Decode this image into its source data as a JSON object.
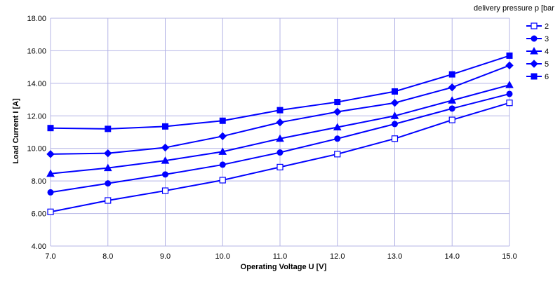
{
  "chart_data": {
    "type": "line",
    "title": "",
    "xlabel": "Operating Voltage U [V]",
    "ylabel": "Load Current I [A]",
    "legend_title": "delivery pressure p [bar",
    "legend_position": "right",
    "grid": true,
    "x": [
      7.0,
      8.0,
      9.0,
      10.0,
      11.0,
      12.0,
      13.0,
      14.0,
      15.0
    ],
    "x_tick_labels": [
      "7.0",
      "8.0",
      "9.0",
      "10.0",
      "11.0",
      "12.0",
      "13.0",
      "14.0",
      "15.0"
    ],
    "y_tick_labels": [
      "4.00",
      "6.00",
      "8.00",
      "10.00",
      "12.00",
      "14.00",
      "16.00",
      "18.00"
    ],
    "xlim": [
      7.0,
      15.0
    ],
    "ylim": [
      4.0,
      18.0
    ],
    "series_color": "#0000ff",
    "grid_color": "#b4b4e6",
    "series": [
      {
        "name": "2",
        "marker": "square-open",
        "values": [
          6.1,
          6.8,
          7.4,
          8.05,
          8.85,
          9.65,
          10.6,
          11.75,
          12.8
        ]
      },
      {
        "name": "3",
        "marker": "circle",
        "values": [
          7.3,
          7.85,
          8.4,
          9.0,
          9.75,
          10.6,
          11.5,
          12.45,
          13.35
        ]
      },
      {
        "name": "4",
        "marker": "triangle",
        "values": [
          8.45,
          8.8,
          9.25,
          9.8,
          10.6,
          11.3,
          12.0,
          12.95,
          13.9
        ]
      },
      {
        "name": "5",
        "marker": "diamond",
        "values": [
          9.65,
          9.7,
          10.05,
          10.75,
          11.6,
          12.25,
          12.8,
          13.75,
          15.1
        ]
      },
      {
        "name": "6",
        "marker": "square",
        "values": [
          11.25,
          11.2,
          11.35,
          11.7,
          12.35,
          12.85,
          13.5,
          14.55,
          15.7
        ]
      }
    ]
  }
}
